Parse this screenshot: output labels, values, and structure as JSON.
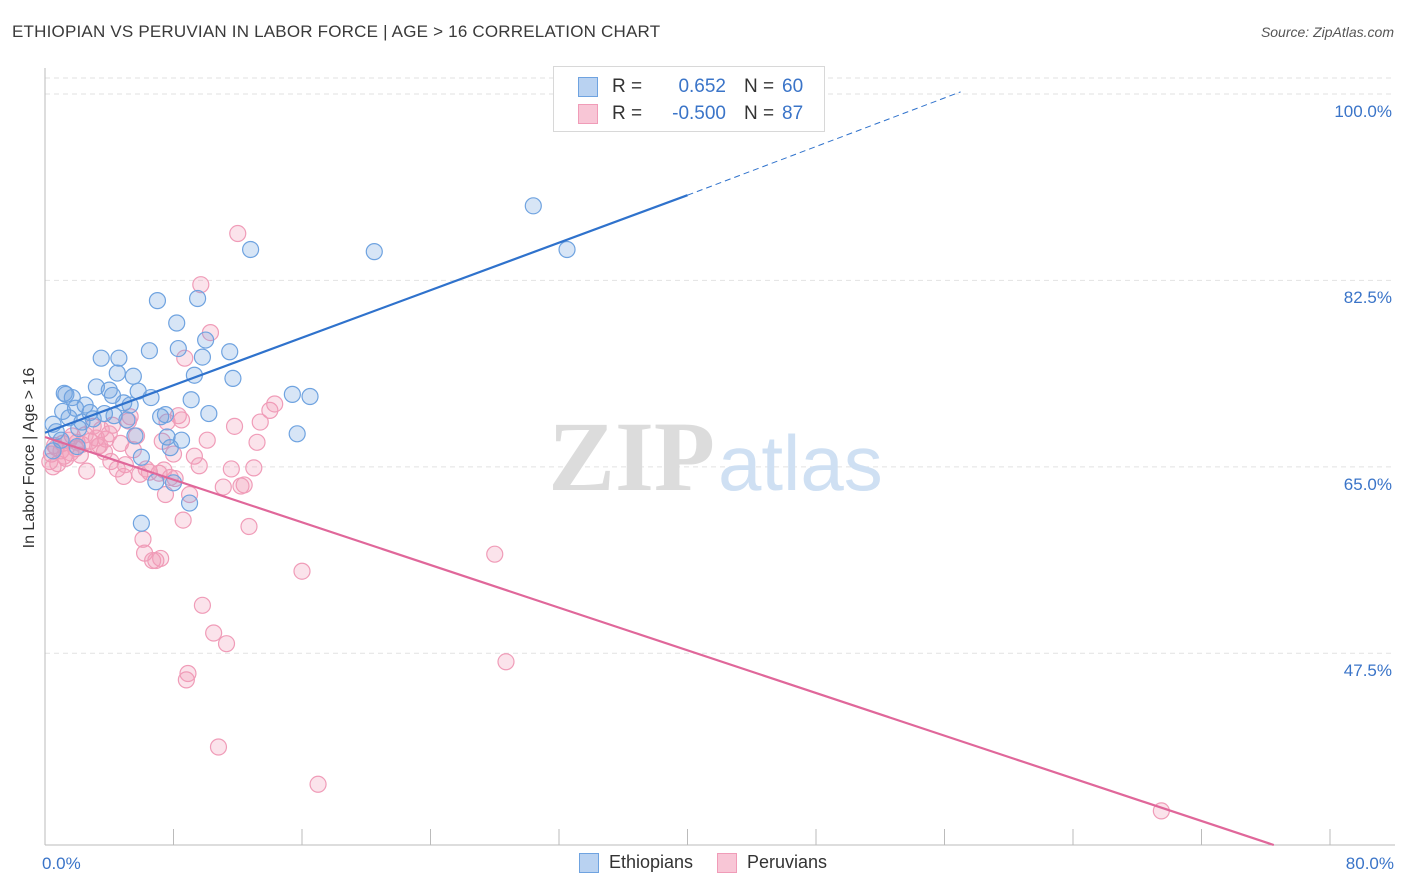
{
  "chart_data": {
    "type": "scatter",
    "title": "ETHIOPIAN VS PERUVIAN IN LABOR FORCE | AGE > 16 CORRELATION CHART",
    "source": "Source: ZipAtlas.com",
    "xlabel": "",
    "ylabel": "In Labor Force | Age > 16",
    "xlim": [
      0,
      80
    ],
    "ylim": [
      29.5,
      101.5
    ],
    "x_tick_labels": [
      "0.0%",
      "80.0%"
    ],
    "y_ticks": [
      47.5,
      65.0,
      82.5,
      100.0
    ],
    "y_tick_labels": [
      "47.5%",
      "65.0%",
      "82.5%",
      "100.0%"
    ],
    "watermark": "ZIPatlas",
    "legend": {
      "entries": [
        {
          "r_label": "R =",
          "r_value": "0.652",
          "n_label": "N =",
          "n_value": "60"
        },
        {
          "r_label": "R =",
          "r_value": "-0.500",
          "n_label": "N =",
          "n_value": "87"
        }
      ]
    },
    "colors": {
      "ethiopians": "#6fa3e0",
      "peruvians": "#f09cb8",
      "blue_line": "#2f72cc",
      "pink_line": "#e0679a",
      "tick_text": "#3a74c8"
    },
    "series": [
      {
        "name": "Ethiopians",
        "trend": {
          "x0": 0,
          "y0": 68.2,
          "x1": 40,
          "y1": 90.5,
          "dash_to_x": 57,
          "dash_to_y": 100.2
        },
        "points": [
          [
            0.5,
            66.5
          ],
          [
            0.7,
            68.3
          ],
          [
            0.5,
            69.0
          ],
          [
            1.0,
            67.5
          ],
          [
            1.1,
            70.2
          ],
          [
            1.3,
            71.8
          ],
          [
            1.5,
            69.6
          ],
          [
            1.7,
            71.5
          ],
          [
            1.9,
            70.5
          ],
          [
            2.1,
            68.6
          ],
          [
            2.3,
            69.2
          ],
          [
            2.5,
            70.8
          ],
          [
            2.8,
            70.1
          ],
          [
            3.0,
            69.5
          ],
          [
            3.2,
            72.5
          ],
          [
            3.5,
            75.2
          ],
          [
            3.7,
            70.0
          ],
          [
            4.0,
            72.2
          ],
          [
            4.2,
            71.7
          ],
          [
            4.3,
            69.8
          ],
          [
            4.5,
            73.8
          ],
          [
            4.6,
            75.2
          ],
          [
            4.9,
            71.0
          ],
          [
            5.1,
            69.4
          ],
          [
            5.3,
            70.8
          ],
          [
            5.5,
            73.5
          ],
          [
            5.6,
            67.9
          ],
          [
            5.8,
            72.1
          ],
          [
            6.0,
            65.9
          ],
          [
            6.5,
            75.9
          ],
          [
            6.6,
            71.5
          ],
          [
            6.9,
            63.6
          ],
          [
            7.0,
            80.6
          ],
          [
            7.2,
            69.7
          ],
          [
            7.5,
            69.9
          ],
          [
            7.6,
            67.8
          ],
          [
            7.8,
            66.8
          ],
          [
            8.0,
            63.5
          ],
          [
            8.2,
            78.5
          ],
          [
            8.3,
            76.1
          ],
          [
            8.5,
            67.5
          ],
          [
            9.0,
            61.6
          ],
          [
            9.1,
            71.3
          ],
          [
            9.3,
            73.6
          ],
          [
            9.5,
            80.8
          ],
          [
            9.8,
            75.3
          ],
          [
            10.0,
            76.9
          ],
          [
            10.2,
            70.0
          ],
          [
            11.5,
            75.8
          ],
          [
            11.7,
            73.3
          ],
          [
            12.8,
            85.4
          ],
          [
            15.4,
            71.8
          ],
          [
            15.7,
            68.1
          ],
          [
            16.5,
            71.6
          ],
          [
            20.5,
            85.2
          ],
          [
            30.4,
            89.5
          ],
          [
            32.5,
            85.4
          ],
          [
            6.0,
            59.7
          ],
          [
            1.2,
            71.9
          ],
          [
            2.0,
            66.9
          ]
        ]
      },
      {
        "name": "Peruvians",
        "trend": {
          "x0": 0,
          "y0": 67.8,
          "x1": 76.5,
          "y1": 29.5
        },
        "points": [
          [
            0.3,
            65.5
          ],
          [
            0.4,
            66.2
          ],
          [
            0.5,
            65.0
          ],
          [
            0.6,
            67.0
          ],
          [
            0.7,
            66.8
          ],
          [
            0.8,
            65.3
          ],
          [
            1.0,
            66.5
          ],
          [
            1.1,
            67.2
          ],
          [
            1.2,
            66.0
          ],
          [
            1.3,
            65.8
          ],
          [
            1.5,
            67.5
          ],
          [
            1.6,
            66.3
          ],
          [
            1.7,
            67.9
          ],
          [
            1.9,
            66.7
          ],
          [
            2.0,
            67.3
          ],
          [
            2.2,
            66.1
          ],
          [
            2.3,
            67.1
          ],
          [
            2.5,
            68.0
          ],
          [
            2.6,
            64.6
          ],
          [
            2.8,
            67.4
          ],
          [
            3.0,
            68.8
          ],
          [
            3.2,
            67.7
          ],
          [
            3.3,
            66.9
          ],
          [
            3.5,
            68.5
          ],
          [
            3.7,
            66.4
          ],
          [
            3.8,
            67.6
          ],
          [
            4.0,
            68.1
          ],
          [
            4.1,
            65.5
          ],
          [
            4.2,
            68.9
          ],
          [
            4.5,
            64.8
          ],
          [
            4.7,
            67.2
          ],
          [
            4.9,
            64.1
          ],
          [
            5.0,
            65.2
          ],
          [
            5.2,
            69.3
          ],
          [
            5.3,
            69.7
          ],
          [
            5.5,
            66.6
          ],
          [
            5.7,
            67.9
          ],
          [
            5.9,
            64.3
          ],
          [
            6.1,
            58.2
          ],
          [
            6.2,
            56.9
          ],
          [
            6.3,
            64.8
          ],
          [
            6.5,
            64.5
          ],
          [
            6.7,
            56.2
          ],
          [
            6.9,
            56.2
          ],
          [
            7.1,
            64.4
          ],
          [
            7.2,
            56.4
          ],
          [
            7.3,
            67.4
          ],
          [
            7.4,
            64.7
          ],
          [
            7.5,
            62.4
          ],
          [
            7.6,
            69.2
          ],
          [
            7.8,
            64.0
          ],
          [
            8.0,
            66.2
          ],
          [
            8.1,
            63.9
          ],
          [
            8.3,
            69.8
          ],
          [
            8.5,
            69.4
          ],
          [
            8.6,
            60.0
          ],
          [
            8.7,
            75.2
          ],
          [
            8.8,
            45.0
          ],
          [
            8.9,
            45.6
          ],
          [
            9.0,
            62.4
          ],
          [
            9.3,
            66.0
          ],
          [
            9.6,
            65.1
          ],
          [
            9.7,
            82.1
          ],
          [
            9.8,
            52.0
          ],
          [
            10.1,
            67.5
          ],
          [
            10.3,
            77.6
          ],
          [
            10.5,
            49.4
          ],
          [
            10.8,
            38.7
          ],
          [
            11.1,
            63.1
          ],
          [
            11.3,
            48.4
          ],
          [
            11.6,
            64.8
          ],
          [
            11.8,
            68.8
          ],
          [
            12.0,
            86.9
          ],
          [
            12.4,
            63.3
          ],
          [
            12.7,
            59.4
          ],
          [
            13.0,
            64.9
          ],
          [
            13.2,
            67.3
          ],
          [
            13.4,
            69.2
          ],
          [
            14.0,
            70.3
          ],
          [
            14.3,
            70.9
          ],
          [
            16.0,
            55.2
          ],
          [
            17.0,
            35.2
          ],
          [
            28.0,
            56.8
          ],
          [
            28.7,
            46.7
          ],
          [
            69.5,
            32.7
          ],
          [
            12.2,
            63.2
          ],
          [
            3.4,
            67.0
          ]
        ]
      }
    ]
  }
}
